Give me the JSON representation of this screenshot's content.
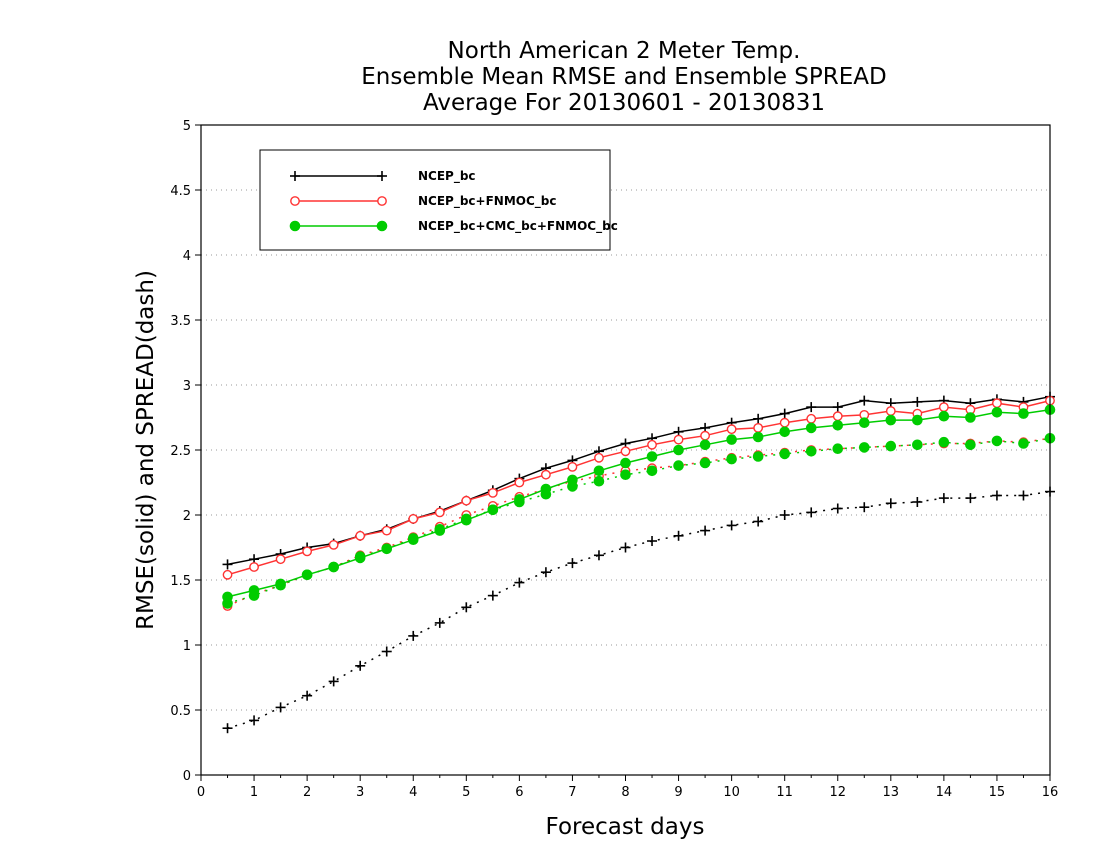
{
  "chart_data": {
    "type": "line",
    "title": [
      "North American 2 Meter Temp.",
      "Ensemble Mean RMSE and Ensemble SPREAD",
      "Average For 20130601 - 20130831"
    ],
    "xlabel": "Forecast days",
    "ylabel": "RMSE(solid) and SPREAD(dash)",
    "xlim": [
      0,
      16
    ],
    "ylim": [
      0,
      5
    ],
    "xticks": [
      0,
      1,
      2,
      3,
      4,
      5,
      6,
      7,
      8,
      9,
      10,
      11,
      12,
      13,
      14,
      15,
      16
    ],
    "yticks": [
      0,
      0.5,
      1,
      1.5,
      2,
      2.5,
      3,
      3.5,
      4,
      4.5,
      5
    ],
    "ytick_labels": [
      "0",
      "0.5",
      "1",
      "1.5",
      "2",
      "2.5",
      "3",
      "3.5",
      "4",
      "4.5",
      "5"
    ],
    "grid": "horizontal-dotted",
    "legend_position": "top-left",
    "x": [
      0.5,
      1,
      1.5,
      2,
      2.5,
      3,
      3.5,
      4,
      4.5,
      5,
      5.5,
      6,
      6.5,
      7,
      7.5,
      8,
      8.5,
      9,
      9.5,
      10,
      10.5,
      11,
      11.5,
      12,
      12.5,
      13,
      13.5,
      14,
      14.5,
      15,
      15.5,
      16
    ],
    "series": [
      {
        "name": "NCEP_bc",
        "metric": "RMSE",
        "style": "solid",
        "color": "#000000",
        "marker": "plus",
        "values": [
          1.62,
          1.66,
          1.7,
          1.75,
          1.78,
          1.84,
          1.89,
          1.97,
          2.03,
          2.11,
          2.19,
          2.28,
          2.36,
          2.42,
          2.49,
          2.55,
          2.59,
          2.64,
          2.67,
          2.71,
          2.74,
          2.78,
          2.83,
          2.83,
          2.88,
          2.86,
          2.87,
          2.88,
          2.86,
          2.89,
          2.87,
          2.91
        ]
      },
      {
        "name": "NCEP_bc+FNMOC_bc",
        "metric": "RMSE",
        "style": "solid",
        "color": "#ff3333",
        "marker": "open-circle",
        "values": [
          1.54,
          1.6,
          1.66,
          1.72,
          1.77,
          1.84,
          1.88,
          1.97,
          2.02,
          2.11,
          2.17,
          2.25,
          2.31,
          2.37,
          2.44,
          2.49,
          2.54,
          2.58,
          2.61,
          2.66,
          2.67,
          2.71,
          2.74,
          2.76,
          2.77,
          2.8,
          2.78,
          2.83,
          2.81,
          2.86,
          2.83,
          2.88
        ]
      },
      {
        "name": "NCEP_bc+CMC_bc+FNMOC_bc",
        "metric": "RMSE",
        "style": "solid",
        "color": "#00cc00",
        "marker": "filled-circle",
        "values": [
          1.37,
          1.42,
          1.47,
          1.54,
          1.6,
          1.67,
          1.74,
          1.81,
          1.88,
          1.96,
          2.04,
          2.12,
          2.2,
          2.27,
          2.34,
          2.4,
          2.45,
          2.5,
          2.54,
          2.58,
          2.6,
          2.64,
          2.67,
          2.69,
          2.71,
          2.73,
          2.73,
          2.76,
          2.75,
          2.79,
          2.78,
          2.81
        ]
      },
      {
        "name": "NCEP_bc",
        "metric": "SPREAD",
        "style": "dash",
        "color": "#000000",
        "marker": "plus",
        "values": [
          0.36,
          0.42,
          0.52,
          0.61,
          0.72,
          0.84,
          0.95,
          1.07,
          1.17,
          1.29,
          1.38,
          1.48,
          1.56,
          1.63,
          1.69,
          1.75,
          1.8,
          1.84,
          1.88,
          1.92,
          1.95,
          2.0,
          2.02,
          2.05,
          2.06,
          2.09,
          2.1,
          2.13,
          2.13,
          2.15,
          2.15,
          2.18
        ]
      },
      {
        "name": "NCEP_bc+FNMOC_bc",
        "metric": "SPREAD",
        "style": "dash",
        "color": "#ff3333",
        "marker": "open-circle",
        "values": [
          1.3,
          1.39,
          1.46,
          1.54,
          1.6,
          1.69,
          1.75,
          1.83,
          1.91,
          2.0,
          2.07,
          2.14,
          2.2,
          2.26,
          2.3,
          2.34,
          2.36,
          2.38,
          2.41,
          2.44,
          2.46,
          2.48,
          2.5,
          2.51,
          2.52,
          2.53,
          2.54,
          2.55,
          2.55,
          2.57,
          2.56,
          2.59
        ]
      },
      {
        "name": "NCEP_bc+CMC_bc+FNMOC_bc",
        "metric": "SPREAD",
        "style": "dash",
        "color": "#00cc00",
        "marker": "filled-circle",
        "values": [
          1.32,
          1.38,
          1.46,
          1.54,
          1.6,
          1.68,
          1.74,
          1.82,
          1.89,
          1.97,
          2.04,
          2.1,
          2.16,
          2.22,
          2.26,
          2.31,
          2.34,
          2.38,
          2.4,
          2.43,
          2.45,
          2.47,
          2.49,
          2.51,
          2.52,
          2.53,
          2.54,
          2.56,
          2.54,
          2.57,
          2.55,
          2.59
        ]
      }
    ]
  }
}
